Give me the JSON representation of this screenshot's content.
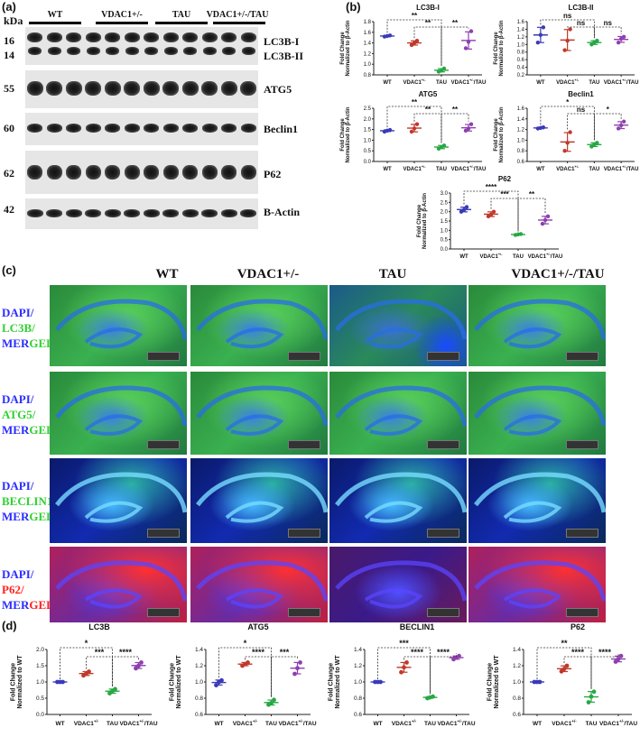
{
  "panels": {
    "a": "(a)",
    "b": "(b)",
    "c": "(c)",
    "d": "(d)"
  },
  "blot": {
    "kda_label": "kDa",
    "groups": [
      "WT",
      "VDAC1+/-",
      "TAU",
      "VDAC1+/-/TAU"
    ],
    "rows": [
      {
        "kda": "16",
        "kda2": "14",
        "name": "LC3B-I",
        "name2": "LC3B-II"
      },
      {
        "kda": "55",
        "name": "ATG5"
      },
      {
        "kda": "60",
        "name": "Beclin1"
      },
      {
        "kda": "62",
        "name": "P62"
      },
      {
        "kda": "42",
        "name": "B-Actin"
      }
    ]
  },
  "micro": {
    "columns": [
      "WT",
      "VDAC1+/-",
      "TAU",
      "VDAC1+/-/TAU"
    ],
    "rows": [
      {
        "l1": "DAPI/",
        "l2": "LC3B/",
        "l3a": "MER",
        "l3b": "GED",
        "c2": "#2fd12f"
      },
      {
        "l1": "DAPI/",
        "l2": "ATG5/",
        "l3a": "MER",
        "l3b": "GED",
        "c2": "#2fd12f"
      },
      {
        "l1": "DAPI/",
        "l2": "BECLIN1",
        "l3a": "MER",
        "l3b": "GED",
        "c2": "#2fd12f"
      },
      {
        "l1": "DAPI/",
        "l2": "P62/",
        "l3a": "MER",
        "l3b": "GED",
        "c2": "#ff2020"
      }
    ],
    "scale_text": "2000 μm"
  },
  "chart_data": [
    {
      "panel": "b",
      "type": "scatter",
      "title": "LC3B-I",
      "ylabel": "Fold Change Normalized to β-Actin",
      "categories": [
        "WT",
        "VDAC1+/-",
        "TAU",
        "VDAC1+/-/TAU"
      ],
      "yticks": [
        "0.8",
        "1.0",
        "1.2",
        "1.4",
        "1.6",
        "1.8"
      ],
      "ylim": [
        0.8,
        1.8
      ],
      "colors": [
        "#3a3ab8",
        "#c0392b",
        "#27a844",
        "#8e3fb0"
      ],
      "series": [
        {
          "values": [
            [
              1.52,
              1.53,
              1.54
            ],
            [
              1.36,
              1.4,
              1.44
            ],
            [
              0.86,
              0.88,
              0.92
            ],
            [
              1.3,
              1.42,
              1.62
            ]
          ]
        }
      ],
      "annotations": [
        "**",
        "**",
        "**"
      ]
    },
    {
      "panel": "b",
      "type": "scatter",
      "title": "LC3B-II",
      "ylabel": "Fold Change Normalized to β-Actin",
      "categories": [
        "WT",
        "VDAC1+/-",
        "TAU",
        "VDAC1+/-/TAU"
      ],
      "yticks": [
        "0.2",
        "0.4",
        "0.6",
        "0.8",
        "1.0",
        "1.2",
        "1.4",
        "1.6"
      ],
      "ylim": [
        0.2,
        1.6
      ],
      "colors": [
        "#3a3ab8",
        "#c0392b",
        "#27a844",
        "#8e3fb0"
      ],
      "series": [
        {
          "values": [
            [
              1.05,
              1.25,
              1.45
            ],
            [
              0.85,
              1.1,
              1.4
            ],
            [
              1.0,
              1.05,
              1.1
            ],
            [
              1.05,
              1.15,
              1.2
            ]
          ]
        }
      ],
      "annotations": [
        "ns",
        "ns",
        "ns"
      ]
    },
    {
      "panel": "b",
      "type": "scatter",
      "title": "ATG5",
      "ylabel": "Fold Change Normalized to β-Actin",
      "categories": [
        "WT",
        "VDAC1+/-",
        "TAU",
        "VDAC1+/-/TAU"
      ],
      "yticks": [
        "0.0",
        "0.5",
        "1.0",
        "1.5",
        "2.0",
        "2.5"
      ],
      "ylim": [
        0,
        2.5
      ],
      "colors": [
        "#3a3ab8",
        "#c0392b",
        "#27a844",
        "#8e3fb0"
      ],
      "series": [
        {
          "values": [
            [
              1.4,
              1.45,
              1.48
            ],
            [
              1.4,
              1.55,
              1.75
            ],
            [
              0.6,
              0.68,
              0.75
            ],
            [
              1.45,
              1.55,
              1.75
            ]
          ]
        }
      ],
      "annotations": [
        "**",
        "**",
        "**"
      ]
    },
    {
      "panel": "b",
      "type": "scatter",
      "title": "Beclin1",
      "ylabel": "Fold Change Normalized to β-Actin",
      "categories": [
        "WT",
        "VDAC1+/-",
        "TAU",
        "VDAC1+/-/TAU"
      ],
      "yticks": [
        "0.6",
        "0.8",
        "1.0",
        "1.2",
        "1.4",
        "1.6"
      ],
      "ylim": [
        0.6,
        1.6
      ],
      "colors": [
        "#3a3ab8",
        "#c0392b",
        "#27a844",
        "#8e3fb0"
      ],
      "series": [
        {
          "values": [
            [
              1.22,
              1.23,
              1.24
            ],
            [
              0.8,
              0.95,
              1.15
            ],
            [
              0.88,
              0.92,
              0.95
            ],
            [
              1.22,
              1.28,
              1.35
            ]
          ]
        }
      ],
      "annotations": [
        "*",
        "ns",
        "*"
      ]
    },
    {
      "panel": "b",
      "type": "scatter",
      "title": "P62",
      "ylabel": "Fold Change Normalized to β-Actin",
      "categories": [
        "WT",
        "VDAC1+/-",
        "TAU",
        "VDAC1+/-/TAU"
      ],
      "yticks": [
        "0.0",
        "0.5",
        "1.0",
        "1.5",
        "2.0",
        "2.5",
        "3.0"
      ],
      "ylim": [
        0,
        3.0
      ],
      "colors": [
        "#3a3ab8",
        "#c0392b",
        "#27a844",
        "#8e3fb0"
      ],
      "series": [
        {
          "values": [
            [
              2.0,
              2.1,
              2.25
            ],
            [
              1.75,
              1.85,
              2.0
            ],
            [
              0.75,
              0.78,
              0.8
            ],
            [
              1.35,
              1.55,
              1.75
            ]
          ]
        }
      ],
      "annotations": [
        "****",
        "***",
        "**"
      ]
    },
    {
      "panel": "d",
      "type": "scatter",
      "title": "LC3B",
      "ylabel": "Fold Change Normalized to WT",
      "categories": [
        "WT",
        "VDAC1+/-",
        "TAU",
        "VDAC1+/-/TAU"
      ],
      "yticks": [
        "0.0",
        "0.5",
        "1.0",
        "1.5",
        "2.0"
      ],
      "ylim": [
        0,
        2.0
      ],
      "colors": [
        "#3a3ab8",
        "#c0392b",
        "#27a844",
        "#8e3fb0"
      ],
      "series": [
        {
          "values": [
            [
              1.0,
              1.0,
              1.0
            ],
            [
              1.2,
              1.26,
              1.32
            ],
            [
              0.65,
              0.72,
              0.78
            ],
            [
              1.42,
              1.5,
              1.6
            ]
          ]
        }
      ],
      "annotations": [
        "*",
        "***",
        "****"
      ]
    },
    {
      "panel": "d",
      "type": "scatter",
      "title": "ATG5",
      "ylabel": "Fold Change Normalized to WT",
      "categories": [
        "WT",
        "VDAC1+/-",
        "TAU",
        "VDAC1+/-/TAU"
      ],
      "yticks": [
        "0.6",
        "0.8",
        "1.0",
        "1.2",
        "1.4"
      ],
      "ylim": [
        0.6,
        1.4
      ],
      "colors": [
        "#3a3ab8",
        "#c0392b",
        "#27a844",
        "#8e3fb0"
      ],
      "series": [
        {
          "values": [
            [
              0.96,
              1.0,
              1.02
            ],
            [
              1.2,
              1.22,
              1.24
            ],
            [
              0.72,
              0.74,
              0.78
            ],
            [
              1.1,
              1.17,
              1.24
            ]
          ]
        }
      ],
      "annotations": [
        "*",
        "****",
        "***"
      ]
    },
    {
      "panel": "d",
      "type": "scatter",
      "title": "BECLIN1",
      "ylabel": "Fold Change Normalized to WT",
      "categories": [
        "WT",
        "VDAC1+/-",
        "TAU",
        "VDAC1+/-/TAU"
      ],
      "yticks": [
        "0.6",
        "0.8",
        "1.0",
        "1.2",
        "1.4"
      ],
      "ylim": [
        0.6,
        1.4
      ],
      "colors": [
        "#3a3ab8",
        "#c0392b",
        "#27a844",
        "#8e3fb0"
      ],
      "series": [
        {
          "values": [
            [
              1.0,
              1.0,
              1.0
            ],
            [
              1.12,
              1.18,
              1.24
            ],
            [
              0.8,
              0.81,
              0.82
            ],
            [
              1.28,
              1.3,
              1.32
            ]
          ]
        }
      ],
      "annotations": [
        "***",
        "****",
        "****"
      ]
    },
    {
      "panel": "d",
      "type": "scatter",
      "title": "P62",
      "ylabel": "Fold Change Normalized to WT",
      "categories": [
        "WT",
        "VDAC1+/-",
        "TAU",
        "VDAC1+/-/TAU"
      ],
      "yticks": [
        "0.6",
        "0.8",
        "1.0",
        "1.2",
        "1.4"
      ],
      "ylim": [
        0.6,
        1.4
      ],
      "colors": [
        "#3a3ab8",
        "#c0392b",
        "#27a844",
        "#8e3fb0"
      ],
      "series": [
        {
          "values": [
            [
              1.0,
              1.0,
              1.0
            ],
            [
              1.13,
              1.16,
              1.2
            ],
            [
              0.75,
              0.82,
              0.88
            ],
            [
              1.25,
              1.28,
              1.32
            ]
          ]
        }
      ],
      "annotations": [
        "**",
        "****",
        "****"
      ]
    }
  ],
  "x_labels": [
    "WT",
    "VDAC1",
    "TAU",
    "VDAC1"
  ],
  "x_sups": [
    "",
    "+/-",
    "",
    "+/-"
  ],
  "x_suffix": [
    "",
    "",
    "",
    "/TAU"
  ]
}
